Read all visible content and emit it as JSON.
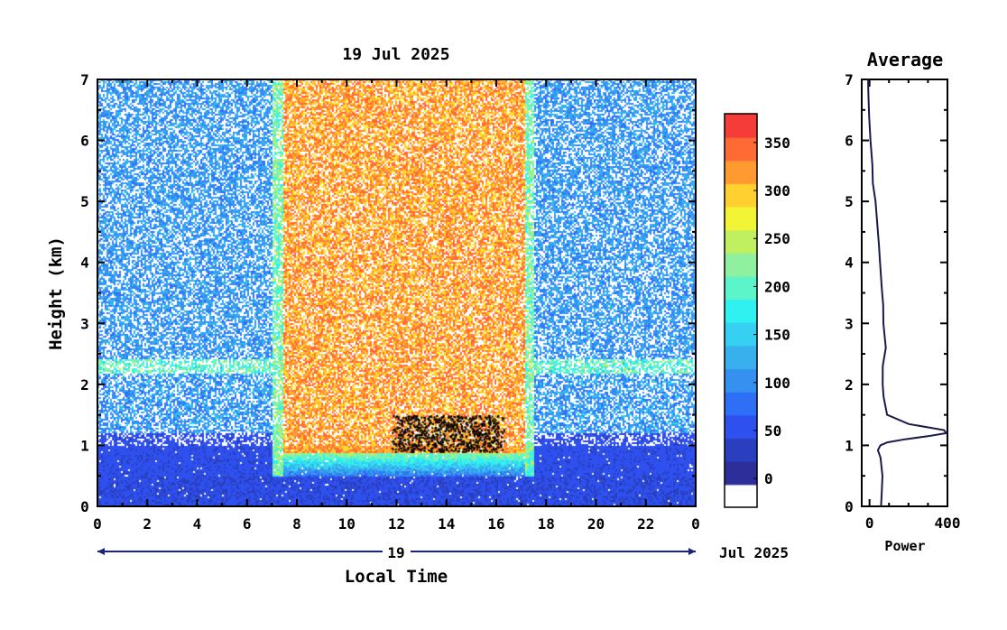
{
  "chart_data": [
    {
      "type": "heatmap",
      "title": "19 Jul 2025",
      "xlabel": "Local Time",
      "ylabel": "Height (km)",
      "x_ticks": [
        "0",
        "2",
        "4",
        "6",
        "8",
        "10",
        "12",
        "14",
        "16",
        "18",
        "20",
        "22",
        "0"
      ],
      "y_ticks": [
        "0",
        "1",
        "2",
        "3",
        "4",
        "5",
        "6",
        "7"
      ],
      "xlim": [
        0,
        24
      ],
      "ylim": [
        0,
        7
      ],
      "date_label": "19",
      "date_suffix": "Jul 2025",
      "colorbar": {
        "ticks": [
          "0",
          "50",
          "100",
          "150",
          "200",
          "250",
          "300",
          "350"
        ],
        "range": [
          -30,
          380
        ],
        "colors": [
          "#ffffff",
          "#2e2e9a",
          "#2a3fc0",
          "#2e50ee",
          "#2f6ff5",
          "#3590f0",
          "#38b0ee",
          "#35d0f2",
          "#30f0f0",
          "#5cf5c9",
          "#8ff0a0",
          "#c0f060",
          "#f2f535",
          "#ffd030",
          "#ff9a30",
          "#ff6a35",
          "#f53c38"
        ]
      },
      "features": {
        "convective_layer_hours": [
          7,
          17.5
        ],
        "boundary_layer_top_km": 2.3,
        "black_cluster_hours": [
          11.8,
          16.3
        ],
        "black_cluster_km": [
          0.9,
          1.5
        ]
      }
    },
    {
      "type": "line",
      "title": "Average",
      "xlabel": "Power",
      "ylabel": "",
      "x_ticks": [
        "0",
        "400"
      ],
      "y_ticks": [
        "0",
        "1",
        "2",
        "3",
        "4",
        "5",
        "6",
        "7"
      ],
      "xlim": [
        -40,
        400
      ],
      "ylim": [
        0,
        7
      ],
      "series": [
        {
          "x": [
            60,
            65,
            70,
            60,
            45,
            55,
            90,
            180,
            300,
            395,
            380,
            200,
            90,
            70,
            65,
            70,
            80,
            75,
            70,
            60,
            55,
            45,
            40,
            30,
            20,
            15,
            5,
            0,
            -5,
            -10
          ],
          "y": [
            0,
            0.2,
            0.5,
            0.8,
            0.92,
            1.0,
            1.05,
            1.1,
            1.15,
            1.2,
            1.25,
            1.35,
            1.5,
            1.8,
            2.0,
            2.3,
            2.6,
            3.0,
            3.3,
            3.6,
            4.0,
            4.3,
            4.6,
            5.0,
            5.3,
            5.6,
            6.0,
            6.4,
            6.8,
            7.0
          ]
        }
      ]
    }
  ]
}
